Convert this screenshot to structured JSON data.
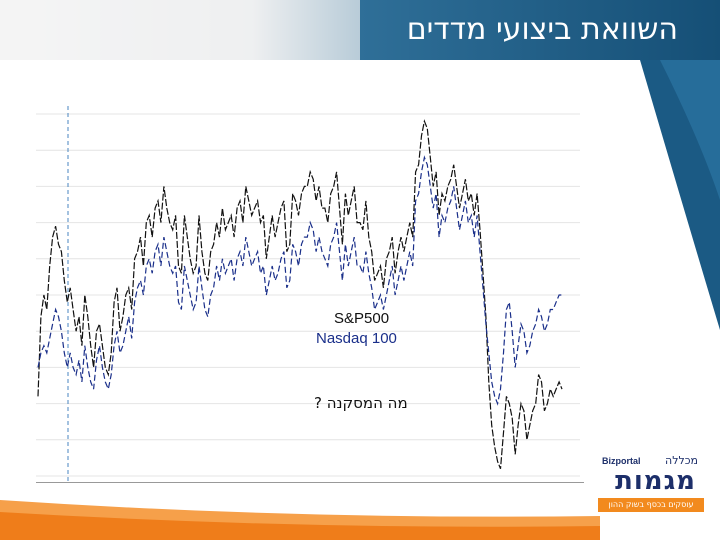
{
  "slide": {
    "title": "השוואת ביצועי מדדים",
    "question": "מה המסקנה ?",
    "colors": {
      "header": "#1d5f86",
      "accent_orange": "#f28a1e",
      "sp500_line": "#111111",
      "nasdaq_line": "#1a2f8a"
    }
  },
  "logo": {
    "brand": "Bizportal",
    "college": "מכללה",
    "name": "מגמות",
    "tagline": "עוסקים בכסף בשוק ההון"
  },
  "chart_data": {
    "type": "line",
    "title": "",
    "xlabel": "",
    "ylabel": "",
    "grid": true,
    "legend_position": "center",
    "x": [
      0,
      1,
      2,
      3,
      4,
      5,
      6,
      7,
      8,
      9,
      10,
      11,
      12,
      13,
      14,
      15,
      16,
      17,
      18,
      19,
      20,
      21,
      22,
      23,
      24,
      25,
      26,
      27,
      28,
      29,
      30,
      31,
      32,
      33,
      34,
      35,
      36,
      37,
      38,
      39,
      40,
      41,
      42,
      43,
      44,
      45,
      46,
      47,
      48,
      49,
      50,
      51,
      52,
      53,
      54,
      55,
      56,
      57,
      58,
      59,
      60,
      61,
      62,
      63,
      64,
      65,
      66,
      67,
      68,
      69,
      70,
      71,
      72,
      73,
      74,
      75,
      76,
      77,
      78,
      79,
      80,
      81,
      82,
      83,
      84,
      85,
      86,
      87,
      88,
      89,
      90,
      91,
      92,
      93,
      94,
      95,
      96,
      97,
      98,
      99,
      100,
      101,
      102,
      103,
      104,
      105,
      106,
      107,
      108,
      109,
      110,
      111,
      112,
      113,
      114,
      115,
      116,
      117,
      118,
      119,
      120,
      121,
      122,
      123,
      124,
      125,
      126,
      127,
      128,
      129,
      130,
      131,
      132,
      133,
      134,
      135,
      136,
      137,
      138,
      139,
      140,
      141,
      142,
      143,
      144,
      145,
      146,
      147,
      148,
      149,
      150,
      151,
      152,
      153,
      154,
      155,
      156,
      157,
      158,
      159,
      160,
      161,
      162,
      163,
      164,
      165,
      166,
      167,
      168,
      169,
      170,
      171,
      172,
      173,
      174,
      175,
      176,
      177,
      178,
      179
    ],
    "series": [
      {
        "name": "S&P500",
        "values": [
          22,
          44,
          50,
          46,
          58,
          66,
          69,
          64,
          62,
          54,
          48,
          52,
          46,
          40,
          44,
          36,
          50,
          44,
          36,
          30,
          40,
          42,
          36,
          30,
          28,
          34,
          48,
          52,
          40,
          44,
          50,
          52,
          46,
          60,
          62,
          66,
          58,
          70,
          72,
          66,
          74,
          76,
          70,
          80,
          74,
          70,
          68,
          72,
          58,
          56,
          72,
          66,
          60,
          56,
          58,
          72,
          62,
          56,
          54,
          62,
          64,
          70,
          66,
          74,
          68,
          70,
          72,
          66,
          74,
          76,
          70,
          80,
          76,
          72,
          74,
          76,
          70,
          72,
          60,
          66,
          72,
          66,
          70,
          74,
          76,
          62,
          64,
          78,
          76,
          72,
          78,
          80,
          80,
          84,
          82,
          76,
          80,
          74,
          74,
          70,
          78,
          80,
          84,
          74,
          64,
          78,
          72,
          76,
          80,
          70,
          70,
          68,
          76,
          66,
          62,
          54,
          56,
          58,
          52,
          60,
          62,
          66,
          56,
          62,
          66,
          62,
          66,
          70,
          66,
          84,
          86,
          94,
          98,
          96,
          88,
          80,
          84,
          72,
          78,
          76,
          80,
          82,
          86,
          80,
          74,
          78,
          82,
          76,
          78,
          72,
          78,
          68,
          56,
          44,
          26,
          14,
          8,
          4,
          2,
          12,
          22,
          20,
          16,
          6,
          14,
          20,
          18,
          10,
          14,
          18,
          20,
          28,
          26,
          18,
          20,
          24,
          22,
          24,
          26,
          24
        ]
      },
      {
        "name": "Nasdaq 100",
        "values": [
          30,
          34,
          36,
          34,
          38,
          42,
          46,
          44,
          40,
          34,
          30,
          34,
          30,
          28,
          32,
          26,
          36,
          30,
          26,
          24,
          32,
          36,
          30,
          26,
          24,
          28,
          36,
          40,
          34,
          36,
          40,
          44,
          38,
          48,
          52,
          54,
          50,
          58,
          60,
          56,
          62,
          64,
          58,
          66,
          62,
          58,
          56,
          58,
          48,
          46,
          58,
          54,
          50,
          46,
          48,
          58,
          52,
          46,
          44,
          50,
          52,
          58,
          54,
          60,
          56,
          58,
          60,
          54,
          60,
          62,
          58,
          66,
          62,
          58,
          60,
          62,
          56,
          58,
          50,
          54,
          58,
          54,
          56,
          60,
          62,
          52,
          54,
          64,
          62,
          58,
          64,
          66,
          66,
          70,
          68,
          62,
          66,
          62,
          60,
          58,
          64,
          66,
          70,
          62,
          54,
          64,
          58,
          62,
          66,
          58,
          58,
          56,
          62,
          56,
          52,
          46,
          48,
          50,
          46,
          50,
          54,
          58,
          50,
          54,
          58,
          54,
          58,
          62,
          58,
          76,
          78,
          84,
          88,
          86,
          80,
          74,
          78,
          66,
          72,
          70,
          74,
          76,
          80,
          74,
          68,
          72,
          76,
          70,
          72,
          66,
          72,
          62,
          52,
          42,
          34,
          26,
          22,
          20,
          24,
          34,
          46,
          48,
          40,
          30,
          36,
          42,
          40,
          34,
          36,
          40,
          42,
          46,
          44,
          40,
          42,
          46,
          46,
          48,
          50,
          50
        ]
      }
    ]
  }
}
